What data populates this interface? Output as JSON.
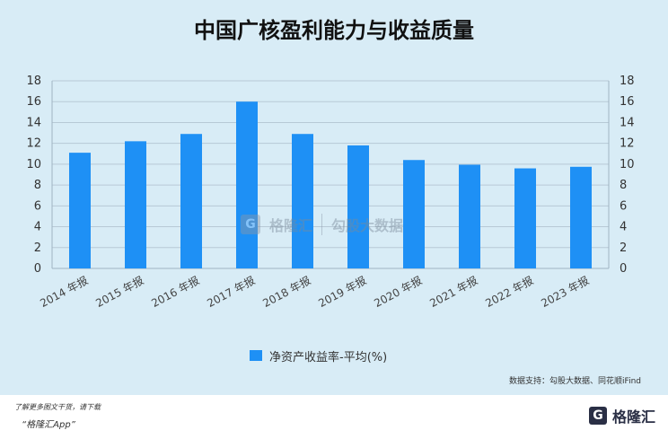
{
  "title": "中国广核盈利能力与收益质量",
  "chart_data": {
    "type": "bar",
    "categories": [
      "2014 年报",
      "2015 年报",
      "2016 年报",
      "2017 年报",
      "2018 年报",
      "2019 年报",
      "2020 年报",
      "2021 年报",
      "2022 年报",
      "2023 年报"
    ],
    "series": [
      {
        "name": "净资产收益率-平均(%)",
        "values": [
          11.1,
          12.2,
          12.9,
          16.0,
          12.9,
          11.8,
          10.4,
          9.95,
          9.6,
          9.75
        ]
      }
    ],
    "ylim": [
      0,
      18
    ],
    "yticks": [
      0,
      2,
      4,
      6,
      8,
      10,
      12,
      14,
      16,
      18
    ],
    "grid": true,
    "legend": "bottom",
    "color": "#1e90f5"
  },
  "source": "数据支持：勾股大数据、同花顺iFind",
  "footer": {
    "note": "了解更多图文干货，请下载",
    "app": "“格隆汇App”",
    "brand_logo": "G",
    "brand_name": "格隆汇"
  },
  "watermark": {
    "logo": "G",
    "left_text": "格隆汇",
    "right_text": "勾股大数据"
  }
}
